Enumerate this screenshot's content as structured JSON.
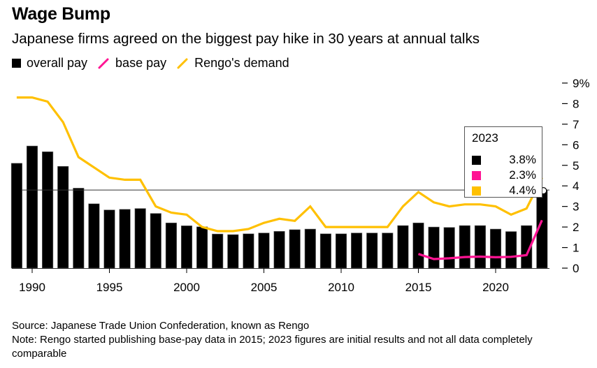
{
  "header": {
    "title": "Wage Bump",
    "subtitle": "Japanese firms agreed on the biggest pay hike in 30 years at annual talks"
  },
  "legend": [
    {
      "label": "overall pay",
      "shape": "square",
      "color": "#000000"
    },
    {
      "label": "base pay",
      "shape": "line",
      "color": "#ff1493"
    },
    {
      "label": "Rengo's demand",
      "shape": "line",
      "color": "#ffc000"
    }
  ],
  "tooltip": {
    "year": "2023",
    "rows": [
      {
        "series": "overall pay",
        "color": "#000000",
        "value": "3.8%"
      },
      {
        "series": "base pay",
        "color": "#ff1493",
        "value": "2.3%"
      },
      {
        "series": "Rengo's demand",
        "color": "#ffc000",
        "value": "4.4%"
      }
    ]
  },
  "footer": {
    "source": "Source: Japanese Trade Union Confederation, known as Rengo",
    "note": "Note: Rengo started publishing base-pay data in 2015; 2023 figures are initial results and not all data completely comparable"
  },
  "chart_data": {
    "type": "bar",
    "title": "Wage Bump",
    "subtitle": "Japanese firms agreed on the biggest pay hike in 30 years at annual talks",
    "xlabel": "",
    "ylabel": "",
    "x": [
      1989,
      1990,
      1991,
      1992,
      1993,
      1994,
      1995,
      1996,
      1997,
      1998,
      1999,
      2000,
      2001,
      2002,
      2003,
      2004,
      2005,
      2006,
      2007,
      2008,
      2009,
      2010,
      2011,
      2012,
      2013,
      2014,
      2015,
      2016,
      2017,
      2018,
      2019,
      2020,
      2021,
      2022,
      2023
    ],
    "x_ticks": [
      1990,
      1995,
      2000,
      2005,
      2010,
      2015,
      2020
    ],
    "x_tick_labels": [
      "1990",
      "1995",
      "2000",
      "2005",
      "2010",
      "2015",
      "2020"
    ],
    "y_ticks": [
      0,
      1,
      2,
      3,
      4,
      5,
      6,
      7,
      8,
      9
    ],
    "y_tick_labels": [
      "0",
      "1",
      "2",
      "3",
      "4",
      "5",
      "6",
      "7",
      "8",
      "9%"
    ],
    "ylim": [
      0,
      9
    ],
    "y_axis_side": "right",
    "grid": false,
    "legend_position": "top-left",
    "reference_line": {
      "value": 3.8,
      "label": "2023 overall pay"
    },
    "series": [
      {
        "name": "overall pay",
        "type": "bar",
        "color": "#000000",
        "values": [
          5.1,
          5.94,
          5.66,
          4.95,
          3.89,
          3.13,
          2.83,
          2.86,
          2.9,
          2.66,
          2.2,
          2.06,
          2.01,
          1.66,
          1.63,
          1.67,
          1.71,
          1.79,
          1.87,
          1.9,
          1.67,
          1.67,
          1.71,
          1.71,
          1.71,
          2.07,
          2.2,
          2.0,
          1.98,
          2.07,
          2.07,
          1.9,
          1.78,
          2.07,
          3.8
        ]
      },
      {
        "name": "base pay",
        "type": "line",
        "color": "#ff1493",
        "start_year": 2015,
        "values": [
          0.69,
          0.44,
          0.48,
          0.54,
          0.56,
          0.53,
          0.55,
          0.63,
          2.33
        ]
      },
      {
        "name": "Rengo's demand",
        "type": "line",
        "color": "#ffc000",
        "values": [
          8.3,
          8.3,
          8.1,
          7.1,
          5.4,
          4.9,
          4.4,
          4.3,
          4.3,
          3.0,
          2.7,
          2.6,
          2.0,
          1.8,
          1.8,
          1.9,
          2.2,
          2.4,
          2.3,
          3.0,
          2.0,
          2.0,
          2.0,
          2.0,
          2.0,
          3.0,
          3.7,
          3.2,
          3.0,
          3.1,
          3.1,
          3.0,
          2.6,
          2.9,
          4.4
        ]
      }
    ],
    "annotations": [
      "2023: overall pay 3.8%, base pay 2.3%, Rengo's demand 4.4%"
    ]
  }
}
